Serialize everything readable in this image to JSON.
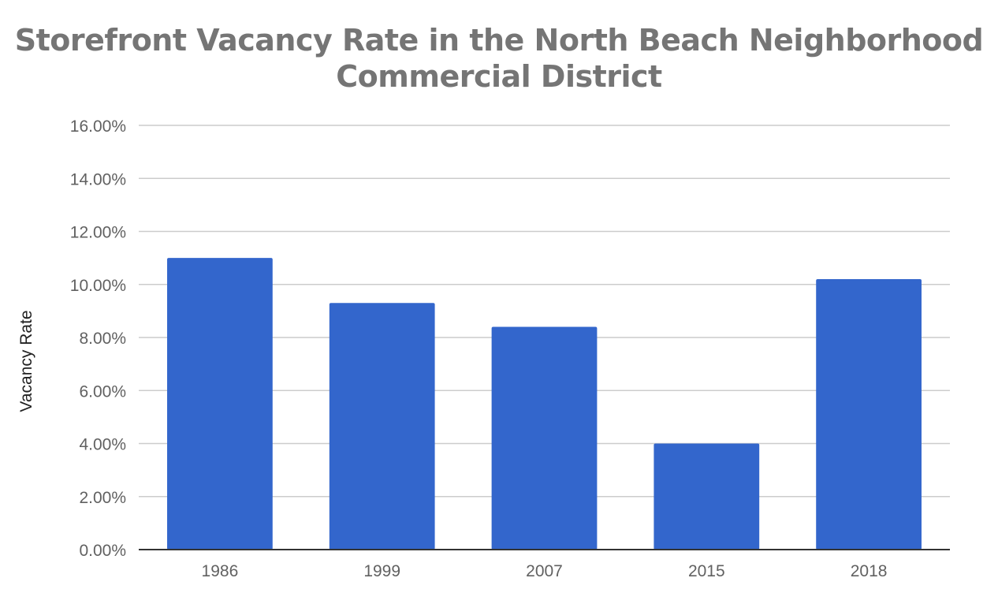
{
  "chart_data": {
    "type": "bar",
    "title_lines": [
      "Storefront Vacancy Rate in the North Beach Neighborhood",
      "Commercial District"
    ],
    "xlabel": "",
    "ylabel": "Vacancy Rate",
    "categories": [
      "1986",
      "1999",
      "2007",
      "2015",
      "2018"
    ],
    "values": [
      11.0,
      9.3,
      8.4,
      4.0,
      10.2
    ],
    "ylim": [
      0,
      16
    ],
    "yticks": [
      0,
      2,
      4,
      6,
      8,
      10,
      12,
      14,
      16
    ],
    "ytick_labels": [
      "0.00%",
      "2.00%",
      "4.00%",
      "6.00%",
      "8.00%",
      "10.00%",
      "12.00%",
      "14.00%",
      "16.00%"
    ],
    "y_unit": "%",
    "grid": true,
    "legend": "none",
    "bar_color": "#3366cc",
    "grid_color": "#cccccc",
    "axis_color": "#333333",
    "text_color": "#616161",
    "title_color": "#757575"
  }
}
